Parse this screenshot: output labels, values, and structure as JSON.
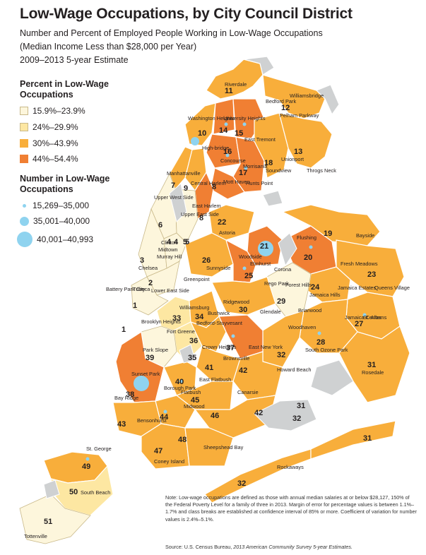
{
  "title": "Low-Wage Occupations, by City Council District",
  "subtitle_line1": "Number and Percent of Employed People Working in Low-Wage Occupations",
  "subtitle_line2": "(Median Income Less than $28,000 per Year)",
  "subtitle_line3": "2009–2013 5-year Estimate",
  "legend_percent": {
    "heading": "Percent in Low-Wage Occupations",
    "classes": [
      {
        "label": "15.9%–23.9%",
        "color": "#fdf6dc"
      },
      {
        "label": "24%–29.9%",
        "color": "#fde7a2"
      },
      {
        "label": "30%–43.9%",
        "color": "#f8ae3b"
      },
      {
        "label": "44%–54.4%",
        "color": "#f07f33"
      }
    ]
  },
  "legend_number": {
    "heading": "Number in Low-Wage Occupations",
    "classes": [
      {
        "label": "15,269–35,000"
      },
      {
        "label": "35,001–40,000"
      },
      {
        "label": "40,001–40,993"
      }
    ],
    "dot_color": "#8fd3ef"
  },
  "no_data_color": "#cfd1d2",
  "districts": [
    "11",
    "12",
    "10",
    "14",
    "15",
    "13",
    "16",
    "17",
    "18",
    "7",
    "9",
    "8",
    "22",
    "6",
    "3",
    "4",
    "5",
    "2",
    "1",
    "21",
    "19",
    "26",
    "20",
    "25",
    "23",
    "24",
    "29",
    "30",
    "34",
    "33",
    "36",
    "37",
    "32",
    "27",
    "28",
    "35",
    "39",
    "41",
    "42",
    "31",
    "38",
    "40",
    "45",
    "44",
    "46",
    "43",
    "48",
    "47",
    "49",
    "50",
    "51"
  ],
  "neighborhoods": [
    "Riverdale",
    "Bedford Park",
    "Williamsbridge",
    "Washington Heights",
    "University Heights",
    "Pelham Parkway",
    "East Tremont",
    "High-bridge",
    "Concourse",
    "Morrisania",
    "Soundview",
    "Unionport",
    "Throgs Neck",
    "Manhattanville",
    "Central Harlem",
    "Mott Haven",
    "Hunts Point",
    "Upper West Side",
    "East Harlem",
    "Upper East Side",
    "Astoria",
    "Bayside",
    "Flushing",
    "Clinton",
    "Midtown",
    "Murray Hill",
    "Woodside",
    "Elmhurst",
    "Sunnyside",
    "Corona",
    "Fresh Meadows",
    "Chelsea",
    "Queens Village",
    "Rego Park",
    "Forest Hills",
    "Jamaica Estates",
    "Greenpoint",
    "Jamaica Hills",
    "Tribeca",
    "Lower East Side",
    "Battery Park City",
    "Ridgewood",
    "Glendale",
    "Briarwood",
    "Williamsburg",
    "Jamaica Center",
    "St. Albans",
    "Bushwick",
    "Bedford-Stuyvesant",
    "Woodhaven",
    "Brooklyn Heights",
    "Fort Greene",
    "Crown Heights",
    "East New York",
    "South Ozone Park",
    "Park Slope",
    "Brownsville",
    "Howard Beach",
    "Rosedale",
    "Sunset Park",
    "East Flatbush",
    "Borough Park",
    "Flatbush",
    "Canarsie",
    "Midwood",
    "Bay Ridge",
    "Bensonhurst",
    "Sheepshead Bay",
    "Coney Island",
    "Rockaways",
    "St. George",
    "South Beach",
    "Tottenville"
  ],
  "note": "Note: Low-wage occupations are defined as those with annual median salaries at or below $28,127, 150% of the Federal Poverty Level for a family of three in 2013. Margin of error for percentage values is between 1.1%–1.7% and class breaks are established at confidence interval of 85% or more. Coefficient of variation for number values is 2.4%–5.1%.",
  "source_prefix": "Source: U.S. Census Bureau, ",
  "source_title": "2013 American Community Survey 5-year Estimates."
}
